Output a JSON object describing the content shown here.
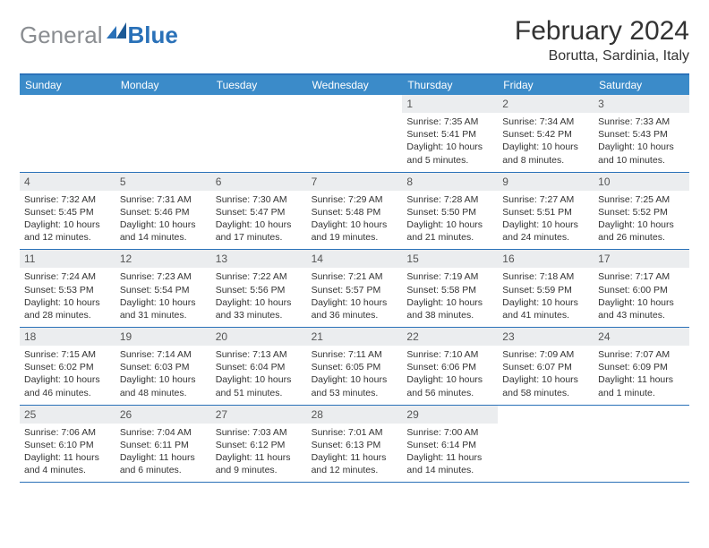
{
  "logo": {
    "gray": "General",
    "blue": "Blue"
  },
  "title": "February 2024",
  "location": "Borutta, Sardinia, Italy",
  "colors": {
    "header_bg": "#3b8bc9",
    "border": "#2a71b8",
    "daynum_bg": "#ebedef",
    "logo_gray": "#8a8d91",
    "logo_blue": "#2a71b8",
    "text": "#333333",
    "page_bg": "#ffffff"
  },
  "dow": [
    "Sunday",
    "Monday",
    "Tuesday",
    "Wednesday",
    "Thursday",
    "Friday",
    "Saturday"
  ],
  "weeks": [
    [
      {
        "n": "",
        "sr": "",
        "ss": "",
        "dl": ""
      },
      {
        "n": "",
        "sr": "",
        "ss": "",
        "dl": ""
      },
      {
        "n": "",
        "sr": "",
        "ss": "",
        "dl": ""
      },
      {
        "n": "",
        "sr": "",
        "ss": "",
        "dl": ""
      },
      {
        "n": "1",
        "sr": "Sunrise: 7:35 AM",
        "ss": "Sunset: 5:41 PM",
        "dl": "Daylight: 10 hours and 5 minutes."
      },
      {
        "n": "2",
        "sr": "Sunrise: 7:34 AM",
        "ss": "Sunset: 5:42 PM",
        "dl": "Daylight: 10 hours and 8 minutes."
      },
      {
        "n": "3",
        "sr": "Sunrise: 7:33 AM",
        "ss": "Sunset: 5:43 PM",
        "dl": "Daylight: 10 hours and 10 minutes."
      }
    ],
    [
      {
        "n": "4",
        "sr": "Sunrise: 7:32 AM",
        "ss": "Sunset: 5:45 PM",
        "dl": "Daylight: 10 hours and 12 minutes."
      },
      {
        "n": "5",
        "sr": "Sunrise: 7:31 AM",
        "ss": "Sunset: 5:46 PM",
        "dl": "Daylight: 10 hours and 14 minutes."
      },
      {
        "n": "6",
        "sr": "Sunrise: 7:30 AM",
        "ss": "Sunset: 5:47 PM",
        "dl": "Daylight: 10 hours and 17 minutes."
      },
      {
        "n": "7",
        "sr": "Sunrise: 7:29 AM",
        "ss": "Sunset: 5:48 PM",
        "dl": "Daylight: 10 hours and 19 minutes."
      },
      {
        "n": "8",
        "sr": "Sunrise: 7:28 AM",
        "ss": "Sunset: 5:50 PM",
        "dl": "Daylight: 10 hours and 21 minutes."
      },
      {
        "n": "9",
        "sr": "Sunrise: 7:27 AM",
        "ss": "Sunset: 5:51 PM",
        "dl": "Daylight: 10 hours and 24 minutes."
      },
      {
        "n": "10",
        "sr": "Sunrise: 7:25 AM",
        "ss": "Sunset: 5:52 PM",
        "dl": "Daylight: 10 hours and 26 minutes."
      }
    ],
    [
      {
        "n": "11",
        "sr": "Sunrise: 7:24 AM",
        "ss": "Sunset: 5:53 PM",
        "dl": "Daylight: 10 hours and 28 minutes."
      },
      {
        "n": "12",
        "sr": "Sunrise: 7:23 AM",
        "ss": "Sunset: 5:54 PM",
        "dl": "Daylight: 10 hours and 31 minutes."
      },
      {
        "n": "13",
        "sr": "Sunrise: 7:22 AM",
        "ss": "Sunset: 5:56 PM",
        "dl": "Daylight: 10 hours and 33 minutes."
      },
      {
        "n": "14",
        "sr": "Sunrise: 7:21 AM",
        "ss": "Sunset: 5:57 PM",
        "dl": "Daylight: 10 hours and 36 minutes."
      },
      {
        "n": "15",
        "sr": "Sunrise: 7:19 AM",
        "ss": "Sunset: 5:58 PM",
        "dl": "Daylight: 10 hours and 38 minutes."
      },
      {
        "n": "16",
        "sr": "Sunrise: 7:18 AM",
        "ss": "Sunset: 5:59 PM",
        "dl": "Daylight: 10 hours and 41 minutes."
      },
      {
        "n": "17",
        "sr": "Sunrise: 7:17 AM",
        "ss": "Sunset: 6:00 PM",
        "dl": "Daylight: 10 hours and 43 minutes."
      }
    ],
    [
      {
        "n": "18",
        "sr": "Sunrise: 7:15 AM",
        "ss": "Sunset: 6:02 PM",
        "dl": "Daylight: 10 hours and 46 minutes."
      },
      {
        "n": "19",
        "sr": "Sunrise: 7:14 AM",
        "ss": "Sunset: 6:03 PM",
        "dl": "Daylight: 10 hours and 48 minutes."
      },
      {
        "n": "20",
        "sr": "Sunrise: 7:13 AM",
        "ss": "Sunset: 6:04 PM",
        "dl": "Daylight: 10 hours and 51 minutes."
      },
      {
        "n": "21",
        "sr": "Sunrise: 7:11 AM",
        "ss": "Sunset: 6:05 PM",
        "dl": "Daylight: 10 hours and 53 minutes."
      },
      {
        "n": "22",
        "sr": "Sunrise: 7:10 AM",
        "ss": "Sunset: 6:06 PM",
        "dl": "Daylight: 10 hours and 56 minutes."
      },
      {
        "n": "23",
        "sr": "Sunrise: 7:09 AM",
        "ss": "Sunset: 6:07 PM",
        "dl": "Daylight: 10 hours and 58 minutes."
      },
      {
        "n": "24",
        "sr": "Sunrise: 7:07 AM",
        "ss": "Sunset: 6:09 PM",
        "dl": "Daylight: 11 hours and 1 minute."
      }
    ],
    [
      {
        "n": "25",
        "sr": "Sunrise: 7:06 AM",
        "ss": "Sunset: 6:10 PM",
        "dl": "Daylight: 11 hours and 4 minutes."
      },
      {
        "n": "26",
        "sr": "Sunrise: 7:04 AM",
        "ss": "Sunset: 6:11 PM",
        "dl": "Daylight: 11 hours and 6 minutes."
      },
      {
        "n": "27",
        "sr": "Sunrise: 7:03 AM",
        "ss": "Sunset: 6:12 PM",
        "dl": "Daylight: 11 hours and 9 minutes."
      },
      {
        "n": "28",
        "sr": "Sunrise: 7:01 AM",
        "ss": "Sunset: 6:13 PM",
        "dl": "Daylight: 11 hours and 12 minutes."
      },
      {
        "n": "29",
        "sr": "Sunrise: 7:00 AM",
        "ss": "Sunset: 6:14 PM",
        "dl": "Daylight: 11 hours and 14 minutes."
      },
      {
        "n": "",
        "sr": "",
        "ss": "",
        "dl": ""
      },
      {
        "n": "",
        "sr": "",
        "ss": "",
        "dl": ""
      }
    ]
  ]
}
